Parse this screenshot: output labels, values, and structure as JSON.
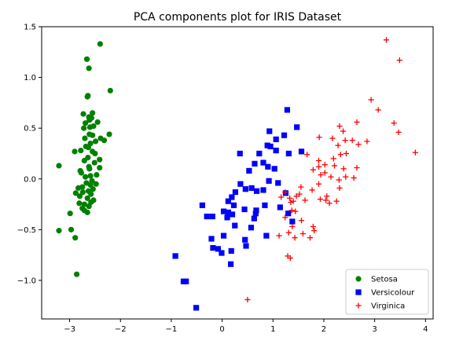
{
  "chart_data": {
    "type": "scatter",
    "title": "PCA components plot for IRIS Dataset",
    "xlabel": "",
    "ylabel": "",
    "xlim": [
      -3.55,
      4.15
    ],
    "ylim": [
      -1.38,
      1.5
    ],
    "xticks": [
      -3,
      -2,
      -1,
      0,
      1,
      2,
      3,
      4
    ],
    "yticks": [
      -1.0,
      -0.5,
      0.0,
      0.5,
      1.0,
      1.5
    ],
    "xtick_labels": [
      "−3",
      "−2",
      "−1",
      "0",
      "1",
      "2",
      "3",
      "4"
    ],
    "ytick_labels": [
      "−1.0",
      "−0.5",
      "0.0",
      "0.5",
      "1.0",
      "1.5"
    ],
    "grid": false,
    "legend_position": "lower-right",
    "series": [
      {
        "name": "Setosa",
        "color": "#008000",
        "marker": "circle",
        "points": [
          [
            -2.4,
            1.33
          ],
          [
            -2.66,
            1.18
          ],
          [
            -2.62,
            1.09
          ],
          [
            -2.2,
            0.87
          ],
          [
            -2.64,
            0.82
          ],
          [
            -2.65,
            0.81
          ],
          [
            -2.73,
            0.64
          ],
          [
            -2.55,
            0.65
          ],
          [
            -2.62,
            0.61
          ],
          [
            -2.57,
            0.6
          ],
          [
            -2.61,
            0.58
          ],
          [
            -2.45,
            0.56
          ],
          [
            -2.69,
            0.55
          ],
          [
            -2.53,
            0.52
          ],
          [
            -2.6,
            0.51
          ],
          [
            -2.72,
            0.5
          ],
          [
            -2.61,
            0.44
          ],
          [
            -2.22,
            0.44
          ],
          [
            -2.55,
            0.43
          ],
          [
            -2.7,
            0.4
          ],
          [
            -2.39,
            0.4
          ],
          [
            -2.32,
            0.38
          ],
          [
            -2.49,
            0.37
          ],
          [
            -2.59,
            0.35
          ],
          [
            -2.68,
            0.32
          ],
          [
            -2.63,
            0.31
          ],
          [
            -2.78,
            0.28
          ],
          [
            -2.9,
            0.27
          ],
          [
            -2.55,
            0.27
          ],
          [
            -2.5,
            0.25
          ],
          [
            -2.64,
            0.21
          ],
          [
            -2.41,
            0.19
          ],
          [
            -2.71,
            0.18
          ],
          [
            -2.51,
            0.16
          ],
          [
            -3.21,
            0.13
          ],
          [
            -2.62,
            0.12
          ],
          [
            -2.41,
            0.11
          ],
          [
            -2.61,
            0.1
          ],
          [
            -2.79,
            0.08
          ],
          [
            -2.77,
            0.06
          ],
          [
            -2.47,
            0.04
          ],
          [
            -2.59,
            0.03
          ],
          [
            -2.69,
            0.02
          ],
          [
            -2.56,
            -0.02
          ],
          [
            -2.67,
            -0.04
          ],
          [
            -2.48,
            -0.05
          ],
          [
            -2.59,
            -0.06
          ],
          [
            -2.75,
            -0.08
          ],
          [
            -2.83,
            -0.09
          ],
          [
            -2.54,
            -0.1
          ],
          [
            -2.63,
            -0.12
          ],
          [
            -2.74,
            -0.13
          ],
          [
            -2.88,
            -0.14
          ],
          [
            -2.58,
            -0.15
          ],
          [
            -2.8,
            -0.17
          ],
          [
            -2.65,
            -0.19
          ],
          [
            -2.53,
            -0.21
          ],
          [
            -2.58,
            -0.23
          ],
          [
            -2.81,
            -0.24
          ],
          [
            -2.71,
            -0.25
          ],
          [
            -2.62,
            -0.27
          ],
          [
            -2.75,
            -0.29
          ],
          [
            -2.71,
            -0.31
          ],
          [
            -2.65,
            -0.33
          ],
          [
            -2.99,
            -0.34
          ],
          [
            -3.21,
            -0.51
          ],
          [
            -2.97,
            -0.5
          ],
          [
            -2.89,
            -0.58
          ],
          [
            -2.86,
            -0.94
          ]
        ]
      },
      {
        "name": "Versicolour",
        "color": "#0000ff",
        "marker": "square",
        "points": [
          [
            1.28,
            0.68
          ],
          [
            1.47,
            0.51
          ],
          [
            0.93,
            0.47
          ],
          [
            1.22,
            0.43
          ],
          [
            1.06,
            0.39
          ],
          [
            0.89,
            0.33
          ],
          [
            0.95,
            0.32
          ],
          [
            1.56,
            0.27
          ],
          [
            1.06,
            0.28
          ],
          [
            0.73,
            0.25
          ],
          [
            0.35,
            0.25
          ],
          [
            1.31,
            0.25
          ],
          [
            0.81,
            0.16
          ],
          [
            0.64,
            0.15
          ],
          [
            0.9,
            0.12
          ],
          [
            1.03,
            0.1
          ],
          [
            0.53,
            0.08
          ],
          [
            1.1,
            -0.04
          ],
          [
            0.92,
            -0.02
          ],
          [
            0.36,
            -0.05
          ],
          [
            0.58,
            -0.09
          ],
          [
            0.46,
            -0.1
          ],
          [
            0.81,
            -0.11
          ],
          [
            0.68,
            -0.12
          ],
          [
            0.26,
            -0.13
          ],
          [
            1.25,
            -0.14
          ],
          [
            0.19,
            -0.18
          ],
          [
            0.12,
            -0.22
          ],
          [
            0.23,
            -0.26
          ],
          [
            -0.39,
            -0.26
          ],
          [
            0.84,
            -0.26
          ],
          [
            1.14,
            -0.28
          ],
          [
            0.44,
            -0.3
          ],
          [
            0.67,
            -0.31
          ],
          [
            0.03,
            -0.32
          ],
          [
            0.12,
            -0.33
          ],
          [
            1.3,
            -0.34
          ],
          [
            0.66,
            -0.34
          ],
          [
            0.2,
            -0.35
          ],
          [
            -0.19,
            -0.37
          ],
          [
            -0.3,
            -0.37
          ],
          [
            0.1,
            -0.38
          ],
          [
            0.63,
            -0.39
          ],
          [
            1.38,
            -0.42
          ],
          [
            0.25,
            -0.46
          ],
          [
            0.57,
            -0.48
          ],
          [
            0.03,
            -0.56
          ],
          [
            0.87,
            -0.56
          ],
          [
            -0.21,
            -0.59
          ],
          [
            0.45,
            -0.6
          ],
          [
            -0.18,
            -0.68
          ],
          [
            -0.08,
            -0.69
          ],
          [
            -0.01,
            -0.73
          ],
          [
            0.47,
            -0.66
          ],
          [
            0.18,
            -0.71
          ],
          [
            0.17,
            -0.84
          ],
          [
            -0.92,
            -0.76
          ],
          [
            -0.76,
            -1.01
          ],
          [
            -0.71,
            -1.01
          ],
          [
            -0.51,
            -1.27
          ]
        ]
      },
      {
        "name": "Virginica",
        "color": "#ff0000",
        "marker": "plus",
        "points": [
          [
            3.23,
            1.37
          ],
          [
            3.49,
            1.17
          ],
          [
            2.93,
            0.78
          ],
          [
            3.07,
            0.68
          ],
          [
            2.65,
            0.56
          ],
          [
            2.31,
            0.52
          ],
          [
            3.38,
            0.55
          ],
          [
            3.47,
            0.46
          ],
          [
            2.38,
            0.47
          ],
          [
            2.17,
            0.4
          ],
          [
            1.91,
            0.41
          ],
          [
            2.28,
            0.33
          ],
          [
            2.42,
            0.38
          ],
          [
            2.56,
            0.38
          ],
          [
            2.85,
            0.37
          ],
          [
            2.68,
            0.34
          ],
          [
            2.33,
            0.24
          ],
          [
            2.44,
            0.25
          ],
          [
            1.67,
            0.24
          ],
          [
            1.9,
            0.18
          ],
          [
            2.19,
            0.2
          ],
          [
            2.02,
            0.14
          ],
          [
            2.21,
            0.13
          ],
          [
            3.8,
            0.26
          ],
          [
            1.9,
            0.12
          ],
          [
            2.39,
            0.1
          ],
          [
            2.65,
            0.11
          ],
          [
            2.02,
            0.06
          ],
          [
            1.79,
            0.09
          ],
          [
            2.14,
            0.02
          ],
          [
            2.43,
            0.02
          ],
          [
            1.94,
            0.04
          ],
          [
            2.59,
            0.01
          ],
          [
            2.3,
            -0.01
          ],
          [
            1.9,
            -0.05
          ],
          [
            1.55,
            -0.08
          ],
          [
            2.31,
            -0.09
          ],
          [
            1.77,
            -0.11
          ],
          [
            1.52,
            -0.15
          ],
          [
            1.24,
            -0.13
          ],
          [
            1.46,
            -0.17
          ],
          [
            2.06,
            -0.17
          ],
          [
            1.33,
            -0.19
          ],
          [
            1.63,
            -0.21
          ],
          [
            1.35,
            -0.23
          ],
          [
            2.25,
            -0.22
          ],
          [
            1.16,
            -0.18
          ],
          [
            1.4,
            -0.22
          ],
          [
            2.11,
            -0.24
          ],
          [
            1.93,
            -0.2
          ],
          [
            2.04,
            -0.21
          ],
          [
            1.37,
            -0.31
          ],
          [
            1.44,
            -0.32
          ],
          [
            1.24,
            -0.38
          ],
          [
            1.56,
            -0.41
          ],
          [
            1.79,
            -0.47
          ],
          [
            1.38,
            -0.47
          ],
          [
            1.31,
            -0.53
          ],
          [
            1.59,
            -0.54
          ],
          [
            1.81,
            -0.51
          ],
          [
            1.12,
            -0.56
          ],
          [
            1.73,
            -0.58
          ],
          [
            1.43,
            -0.58
          ],
          [
            1.29,
            -0.76
          ],
          [
            1.34,
            -0.78
          ],
          [
            0.5,
            -1.19
          ]
        ]
      }
    ]
  }
}
